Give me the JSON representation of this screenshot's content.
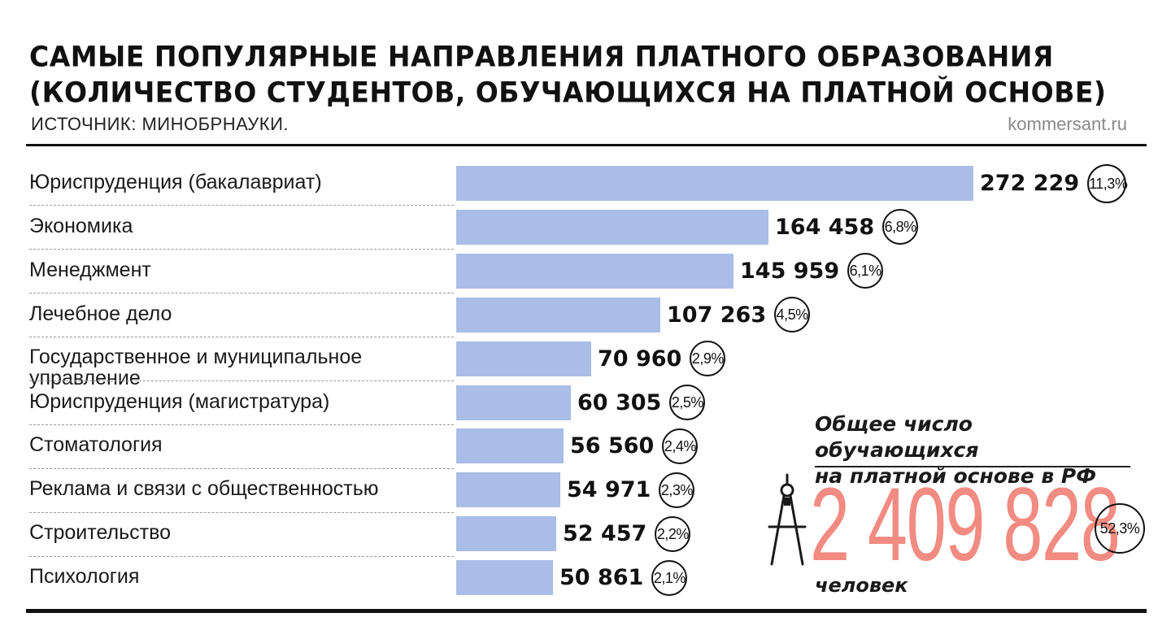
{
  "header": {
    "title_line1": "САМЫЕ ПОПУЛЯРНЫЕ НАПРАВЛЕНИЯ ПЛАТНОГО ОБРАЗОВАНИЯ",
    "title_line2": "(КОЛИЧЕСТВО СТУДЕНТОВ, ОБУЧАЮЩИХСЯ НА ПЛАТНОЙ ОСНОВЕ)",
    "source": "ИСТОЧНИК: МИНОБРНАУКИ.",
    "site": "kommersant.ru"
  },
  "chart_data": {
    "type": "bar",
    "orientation": "horizontal",
    "categories": [
      "Юриспруденция (бакалавриат)",
      "Экономика",
      "Менеджмент",
      "Лечебное дело",
      "Государственное и муниципальное управление",
      "Юриспруденция (магистратура)",
      "Стоматология",
      "Реклама и связи с общественностью",
      "Строительство",
      "Психология"
    ],
    "values": [
      272229,
      164458,
      145959,
      107263,
      70960,
      60305,
      56560,
      54971,
      52457,
      50861
    ],
    "value_labels": [
      "272 229",
      "164 458",
      "145 959",
      "107 263",
      "70 960",
      "60 305",
      "56 560",
      "54 971",
      "52 457",
      "50 861"
    ],
    "percent_labels": [
      "11,3%",
      "6,8%",
      "6,1%",
      "4,5%",
      "2,9%",
      "2,5%",
      "2,4%",
      "2,3%",
      "2,2%",
      "2,1%"
    ],
    "xlim": [
      0,
      272229
    ],
    "bar_color": "#a9bde6",
    "grid": false
  },
  "total": {
    "label_line1": "Общее число обучающихся",
    "label_line2": "на платной основе в РФ",
    "value": "2 409 828",
    "unit": "человек",
    "percent": "52,3%",
    "value_color": "#f28b82",
    "icon": "compass-icon"
  }
}
